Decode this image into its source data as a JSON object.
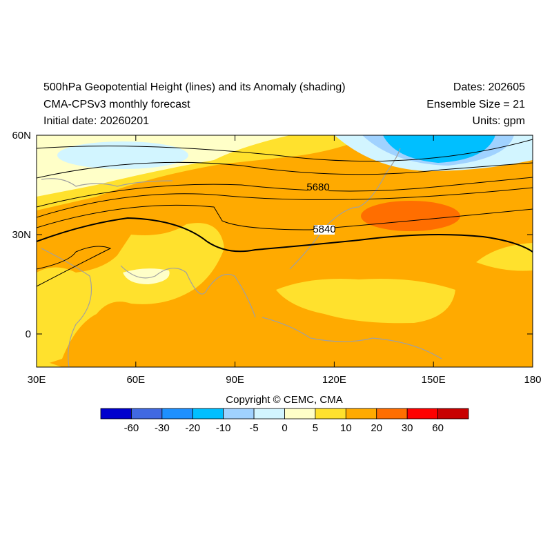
{
  "header": {
    "title_left": [
      "500hPa Geopotential Height (lines) and its Anomaly (shading)",
      "CMA-CPSv3 monthly forecast",
      "Initial date: 20260201"
    ],
    "title_right": [
      "Dates: 202605",
      "Ensemble Size = 21",
      "Units: gpm"
    ]
  },
  "copyright": "Copyright © CEMC, CMA",
  "chart_data": {
    "type": "heatmap",
    "subtype": "map with contour lines",
    "variable_shading": "500hPa geopotential height anomaly (gpm)",
    "variable_lines": "500hPa geopotential height (gpm)",
    "lon_range": [
      30,
      180
    ],
    "lat_range": [
      -10,
      60
    ],
    "x_ticks": [
      "30E",
      "60E",
      "90E",
      "120E",
      "150E",
      "180"
    ],
    "y_ticks": [
      "60N",
      "30N",
      "0"
    ],
    "contour_labels": [
      "5680",
      "5840"
    ],
    "colorbar": {
      "labels": [
        "-60",
        "-30",
        "-20",
        "-10",
        "-5",
        "0",
        "5",
        "10",
        "20",
        "30",
        "60"
      ],
      "colors": [
        "#0000CD",
        "#4169E1",
        "#1E90FF",
        "#00BFFF",
        "#A0D2FF",
        "#D2F5FF",
        "#FFFFC8",
        "#FFE12D",
        "#FFAA00",
        "#FF6E00",
        "#FF0000",
        "#C80000"
      ]
    }
  }
}
